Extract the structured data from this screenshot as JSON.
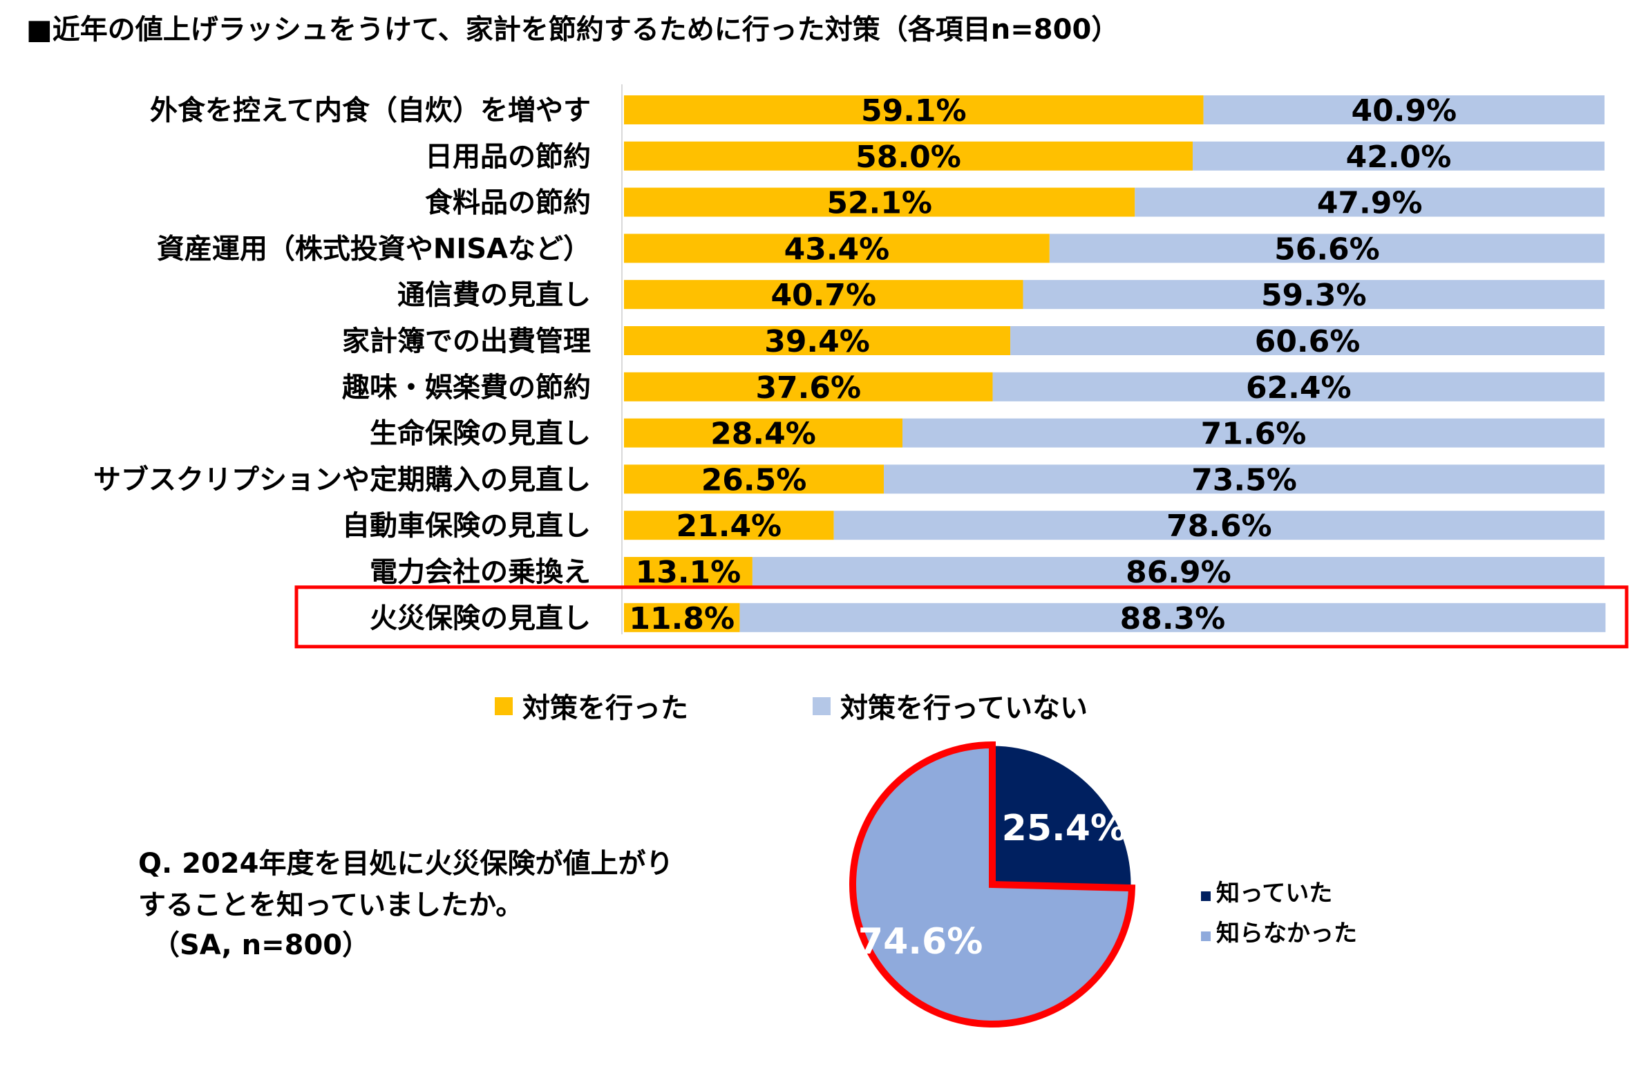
{
  "title": "■近年の値上げラッシュをうけて、家計を節約するために行った対策（各項目n=800）",
  "colors": {
    "done": "#FFC000",
    "not_done": "#B4C7E7",
    "axis": "#D9D9D9",
    "highlight": "#FF0000",
    "pie_knew": "#002060",
    "pie_didnt": "#8FAADC"
  },
  "chart_data": [
    {
      "type": "bar",
      "stacked": true,
      "orientation": "horizontal",
      "title": "近年の値上げラッシュをうけて、家計を節約するために行った対策（各項目n=800）",
      "categories": [
        "外食を控えて内食（自炊）を増やす",
        "日用品の節約",
        "食料品の節約",
        "資産運用（株式投資やNISAなど）",
        "通信費の見直し",
        "家計簿での出費管理",
        "趣味・娯楽費の節約",
        "生命保険の見直し",
        "サブスクリプションや定期購入の見直し",
        "自動車保険の見直し",
        "電力会社の乗換え",
        "火災保険の見直し"
      ],
      "series": [
        {
          "name": "対策を行った",
          "values": [
            59.1,
            58.0,
            52.1,
            43.4,
            40.7,
            39.4,
            37.6,
            28.4,
            26.5,
            21.4,
            13.1,
            11.8
          ]
        },
        {
          "name": "対策を行っていない",
          "values": [
            40.9,
            42.0,
            47.9,
            56.6,
            59.3,
            60.6,
            62.4,
            71.6,
            73.5,
            78.6,
            86.9,
            88.3
          ]
        }
      ],
      "value_labels": [
        [
          "59.1%",
          "58.0%",
          "52.1%",
          "43.4%",
          "40.7%",
          "39.4%",
          "37.6%",
          "28.4%",
          "26.5%",
          "21.4%",
          "13.1%",
          "11.8%"
        ],
        [
          "40.9%",
          "42.0%",
          "47.9%",
          "56.6%",
          "59.3%",
          "60.6%",
          "62.4%",
          "71.6%",
          "73.5%",
          "78.6%",
          "86.9%",
          "88.3%"
        ]
      ],
      "xlim": [
        0,
        100
      ],
      "legend": "bottom",
      "highlighted_category": "火災保険の見直し"
    },
    {
      "type": "pie",
      "question": [
        "Q. 2024年度を目処に火災保険が値上がり",
        "することを知っていましたか。",
        "（SA, n=800）"
      ],
      "slices": [
        {
          "name": "知っていた",
          "value": 25.4,
          "label": "25.4%"
        },
        {
          "name": "知らなかった",
          "value": 74.6,
          "label": "74.6%"
        }
      ],
      "legend": "right"
    }
  ]
}
